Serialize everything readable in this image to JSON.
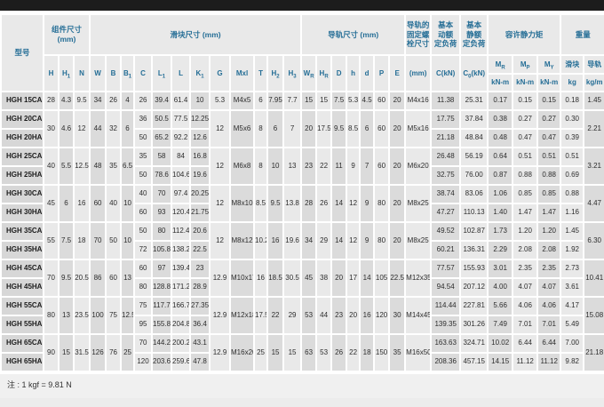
{
  "note": "注 : 1 kgf = 9.81 N",
  "colors": {
    "header_text": "#256e96",
    "top_bar": "#1c1c1c",
    "col_light": "#e9e9e9",
    "col_dark": "#dbdbdb",
    "model_bg": "#d7d7d7"
  },
  "table": {
    "model_label": "型号",
    "groups": [
      {
        "title": "组件尺寸\n(mm)",
        "cols": [
          {
            "label": "H"
          },
          {
            "label": "H_1"
          },
          {
            "label": "N"
          }
        ]
      },
      {
        "title": "滑块尺寸 (mm)",
        "cols": [
          {
            "label": "W"
          },
          {
            "label": "B"
          },
          {
            "label": "B_1"
          },
          {
            "label": "C"
          },
          {
            "label": "L_1"
          },
          {
            "label": "L"
          },
          {
            "label": "K_1"
          },
          {
            "label": "G"
          },
          {
            "label": "Mxl"
          },
          {
            "label": "T"
          },
          {
            "label": "H_2"
          },
          {
            "label": "H_3"
          }
        ]
      },
      {
        "title": "导轨尺寸 (mm)",
        "cols": [
          {
            "label": "W_R"
          },
          {
            "label": "H_R"
          },
          {
            "label": "D"
          },
          {
            "label": "h"
          },
          {
            "label": "d"
          },
          {
            "label": "P"
          },
          {
            "label": "E"
          }
        ]
      },
      {
        "title": "导轨的\n固定螺\n栓尺寸",
        "cols": [
          {
            "label": "(mm)"
          }
        ]
      },
      {
        "title": "基本\n动额\n定负荷",
        "cols": [
          {
            "label": "C(kN)"
          }
        ]
      },
      {
        "title": "基本\n静额\n定负荷",
        "cols": [
          {
            "label": "C_0(kN)"
          }
        ]
      },
      {
        "title": "容许静力矩",
        "cols": [
          {
            "label": "M_R",
            "unit": "kN-m"
          },
          {
            "label": "M_P",
            "unit": "kN-m"
          },
          {
            "label": "M_Y",
            "unit": "kN-m"
          }
        ]
      },
      {
        "title": "重量",
        "cols": [
          {
            "label": "滑块",
            "unit": "kg"
          },
          {
            "label": "导轨",
            "unit": "kg/m"
          }
        ]
      }
    ],
    "body": [
      {
        "shared": {
          "H": "28",
          "H1": "4.3",
          "N": "9.5",
          "W": "34",
          "B": "26",
          "B1": "4",
          "G": "5.3",
          "Mxl": "M4x5",
          "T": "6",
          "H2": "7.95",
          "H3": "7.7",
          "WR": "15",
          "HR": "15",
          "D": "7.5",
          "h": "5.3",
          "d": "4.5",
          "P": "60",
          "E": "20",
          "bolt": "M4x16",
          "mR": "1.45"
        },
        "rows": [
          {
            "model": "HGH 15CA",
            "C": "26",
            "L1": "39.4",
            "L": "61.4",
            "K1": "10",
            "Ckn": "11.38",
            "C0kn": "25.31",
            "MR": "0.17",
            "MP": "0.15",
            "MY": "0.15",
            "mB": "0.18"
          }
        ]
      },
      {
        "shared": {
          "H": "30",
          "H1": "4.6",
          "N": "12",
          "W": "44",
          "B": "32",
          "B1": "6",
          "G": "12",
          "Mxl": "M5x6",
          "T": "8",
          "H2": "6",
          "H3": "7",
          "WR": "20",
          "HR": "17.5",
          "D": "9.5",
          "h": "8.5",
          "d": "6",
          "P": "60",
          "E": "20",
          "bolt": "M5x16",
          "mR": "2.21"
        },
        "rows": [
          {
            "model": "HGH 20CA",
            "C": "36",
            "L1": "50.5",
            "L": "77.5",
            "K1": "12.25",
            "Ckn": "17.75",
            "C0kn": "37.84",
            "MR": "0.38",
            "MP": "0.27",
            "MY": "0.27",
            "mB": "0.30"
          },
          {
            "model": "HGH 20HA",
            "C": "50",
            "L1": "65.2",
            "L": "92.2",
            "K1": "12.6",
            "Ckn": "21.18",
            "C0kn": "48.84",
            "MR": "0.48",
            "MP": "0.47",
            "MY": "0.47",
            "mB": "0.39"
          }
        ]
      },
      {
        "shared": {
          "H": "40",
          "H1": "5.5",
          "N": "12.5",
          "W": "48",
          "B": "35",
          "B1": "6.5",
          "G": "12",
          "Mxl": "M6x8",
          "T": "8",
          "H2": "10",
          "H3": "13",
          "WR": "23",
          "HR": "22",
          "D": "11",
          "h": "9",
          "d": "7",
          "P": "60",
          "E": "20",
          "bolt": "M6x20",
          "mR": "3.21"
        },
        "rows": [
          {
            "model": "HGH 25CA",
            "C": "35",
            "L1": "58",
            "L": "84",
            "K1": "16.8",
            "Ckn": "26.48",
            "C0kn": "56.19",
            "MR": "0.64",
            "MP": "0.51",
            "MY": "0.51",
            "mB": "0.51"
          },
          {
            "model": "HGH 25HA",
            "C": "50",
            "L1": "78.6",
            "L": "104.6",
            "K1": "19.6",
            "Ckn": "32.75",
            "C0kn": "76.00",
            "MR": "0.87",
            "MP": "0.88",
            "MY": "0.88",
            "mB": "0.69"
          }
        ]
      },
      {
        "shared": {
          "H": "45",
          "H1": "6",
          "N": "16",
          "W": "60",
          "B": "40",
          "B1": "10",
          "G": "12",
          "Mxl": "M8x10",
          "T": "8.5",
          "H2": "9.5",
          "H3": "13.8",
          "WR": "28",
          "HR": "26",
          "D": "14",
          "h": "12",
          "d": "9",
          "P": "80",
          "E": "20",
          "bolt": "M8x25",
          "mR": "4.47"
        },
        "rows": [
          {
            "model": "HGH 30CA",
            "C": "40",
            "L1": "70",
            "L": "97.4",
            "K1": "20.25",
            "Ckn": "38.74",
            "C0kn": "83.06",
            "MR": "1.06",
            "MP": "0.85",
            "MY": "0.85",
            "mB": "0.88"
          },
          {
            "model": "HGH 30HA",
            "C": "60",
            "L1": "93",
            "L": "120.4",
            "K1": "21.75",
            "Ckn": "47.27",
            "C0kn": "110.13",
            "MR": "1.40",
            "MP": "1.47",
            "MY": "1.47",
            "mB": "1.16"
          }
        ]
      },
      {
        "shared": {
          "H": "55",
          "H1": "7.5",
          "N": "18",
          "W": "70",
          "B": "50",
          "B1": "10",
          "G": "12",
          "Mxl": "M8x12",
          "T": "10.2",
          "H2": "16",
          "H3": "19.6",
          "WR": "34",
          "HR": "29",
          "D": "14",
          "h": "12",
          "d": "9",
          "P": "80",
          "E": "20",
          "bolt": "M8x25",
          "mR": "6.30"
        },
        "rows": [
          {
            "model": "HGH 35CA",
            "C": "50",
            "L1": "80",
            "L": "112.4",
            "K1": "20.6",
            "Ckn": "49.52",
            "C0kn": "102.87",
            "MR": "1.73",
            "MP": "1.20",
            "MY": "1.20",
            "mB": "1.45"
          },
          {
            "model": "HGH 35HA",
            "C": "72",
            "L1": "105.8",
            "L": "138.2",
            "K1": "22.5",
            "Ckn": "60.21",
            "C0kn": "136.31",
            "MR": "2.29",
            "MP": "2.08",
            "MY": "2.08",
            "mB": "1.92"
          }
        ]
      },
      {
        "shared": {
          "H": "70",
          "H1": "9.5",
          "N": "20.5",
          "W": "86",
          "B": "60",
          "B1": "13",
          "G": "12.9",
          "Mxl": "M10x17",
          "T": "16",
          "H2": "18.5",
          "H3": "30.5",
          "WR": "45",
          "HR": "38",
          "D": "20",
          "h": "17",
          "d": "14",
          "P": "105",
          "E": "22.5",
          "bolt": "M12x35",
          "mR": "10.41"
        },
        "rows": [
          {
            "model": "HGH 45CA",
            "C": "60",
            "L1": "97",
            "L": "139.4",
            "K1": "23",
            "Ckn": "77.57",
            "C0kn": "155.93",
            "MR": "3.01",
            "MP": "2.35",
            "MY": "2.35",
            "mB": "2.73"
          },
          {
            "model": "HGH 45HA",
            "C": "80",
            "L1": "128.8",
            "L": "171.2",
            "K1": "28.9",
            "Ckn": "94.54",
            "C0kn": "207.12",
            "MR": "4.00",
            "MP": "4.07",
            "MY": "4.07",
            "mB": "3.61"
          }
        ]
      },
      {
        "shared": {
          "H": "80",
          "H1": "13",
          "N": "23.5",
          "W": "100",
          "B": "75",
          "B1": "12.5",
          "G": "12.9",
          "Mxl": "M12x18",
          "T": "17.5",
          "H2": "22",
          "H3": "29",
          "WR": "53",
          "HR": "44",
          "D": "23",
          "h": "20",
          "d": "16",
          "P": "120",
          "E": "30",
          "bolt": "M14x45",
          "mR": "15.08"
        },
        "rows": [
          {
            "model": "HGH 55CA",
            "C": "75",
            "L1": "117.7",
            "L": "166.7",
            "K1": "27.35",
            "Ckn": "114.44",
            "C0kn": "227.81",
            "MR": "5.66",
            "MP": "4.06",
            "MY": "4.06",
            "mB": "4.17"
          },
          {
            "model": "HGH 55HA",
            "C": "95",
            "L1": "155.8",
            "L": "204.8",
            "K1": "36.4",
            "Ckn": "139.35",
            "C0kn": "301.26",
            "MR": "7.49",
            "MP": "7.01",
            "MY": "7.01",
            "mB": "5.49"
          }
        ]
      },
      {
        "shared": {
          "H": "90",
          "H1": "15",
          "N": "31.5",
          "W": "126",
          "B": "76",
          "B1": "25",
          "G": "12.9",
          "Mxl": "M16x20",
          "T": "25",
          "H2": "15",
          "H3": "15",
          "WR": "63",
          "HR": "53",
          "D": "26",
          "h": "22",
          "d": "18",
          "P": "150",
          "E": "35",
          "bolt": "M16x50",
          "mR": "21.18"
        },
        "rows": [
          {
            "model": "HGH 65CA",
            "C": "70",
            "L1": "144.2",
            "L": "200.2",
            "K1": "43.1",
            "Ckn": "163.63",
            "C0kn": "324.71",
            "MR": "10.02",
            "MP": "6.44",
            "MY": "6.44",
            "mB": "7.00"
          },
          {
            "model": "HGH 65HA",
            "C": "120",
            "L1": "203.6",
            "L": "259.6",
            "K1": "47.8",
            "Ckn": "208.36",
            "C0kn": "457.15",
            "MR": "14.15",
            "MP": "11.12",
            "MY": "11.12",
            "mB": "9.82"
          }
        ]
      }
    ]
  }
}
